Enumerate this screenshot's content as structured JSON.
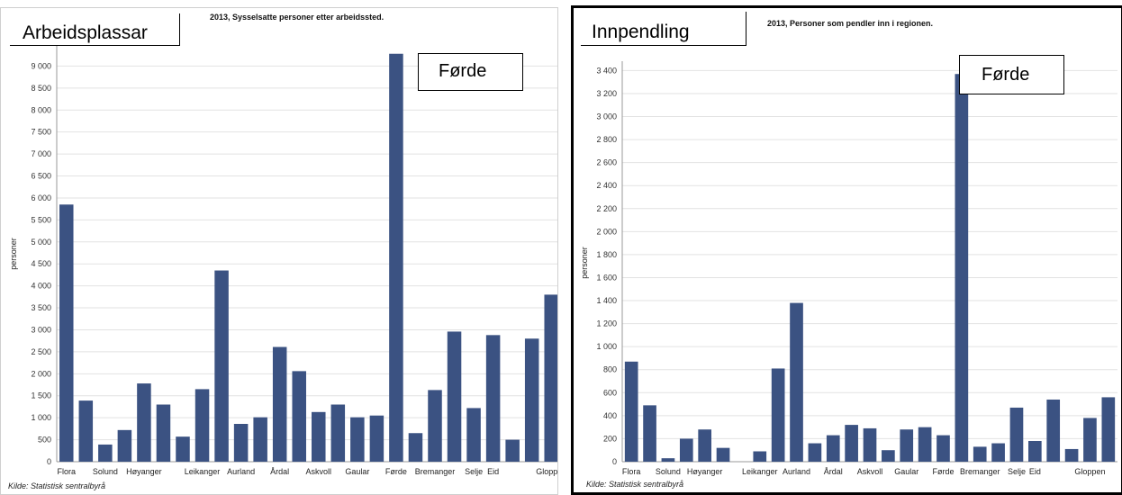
{
  "chart_data": [
    {
      "type": "bar",
      "panel_label": "Arbeidsplassar",
      "title": "2013, Sysselsatte personer etter arbeidssted.",
      "highlight_label": "Førde",
      "ylabel": "personer",
      "source": "Kilde: Statistisk sentralbyrå",
      "ylim": [
        0,
        9500
      ],
      "yticks": [
        "0",
        "500",
        "1 000",
        "1 500",
        "2 000",
        "2 500",
        "3 000",
        "3 500",
        "4 000",
        "4 500",
        "5 000",
        "5 500",
        "6 000",
        "6 500",
        "7 000",
        "7 500",
        "8 000",
        "8 500",
        "9 000"
      ],
      "tick_values": [
        0,
        500,
        1000,
        1500,
        2000,
        2500,
        3000,
        3500,
        4000,
        4500,
        5000,
        5500,
        6000,
        6500,
        7000,
        7500,
        8000,
        8500,
        9000
      ],
      "x_labels": [
        "Flora",
        "Solund",
        "Høyanger",
        "Leikanger",
        "Aurland",
        "Årdal",
        "Askvoll",
        "Gaular",
        "Førde",
        "Bremanger",
        "Selje",
        "Eid",
        "Gloppen"
      ],
      "x_label_positions": [
        0,
        2,
        4,
        7,
        9,
        11,
        13,
        15,
        17,
        19,
        21,
        22,
        25
      ],
      "values": [
        5850,
        1390,
        390,
        720,
        1780,
        1300,
        570,
        1650,
        4350,
        860,
        1010,
        2610,
        2060,
        1130,
        1300,
        1010,
        1050,
        9280,
        650,
        1630,
        2960,
        1220,
        2880,
        500,
        2800,
        3800
      ],
      "bar_color": "#3b5282",
      "grid": true
    },
    {
      "type": "bar",
      "panel_label": "Innpendling",
      "title": "2013, Personer som pendler inn i regionen.",
      "highlight_label": "Førde",
      "ylabel": "personer",
      "source": "Kilde: Statistisk sentralbyrå",
      "ylim": [
        0,
        3450
      ],
      "yticks": [
        "0",
        "200",
        "400",
        "600",
        "800",
        "1 000",
        "1 200",
        "1 400",
        "1 600",
        "1 800",
        "2 000",
        "2 200",
        "2 400",
        "2 600",
        "2 800",
        "3 000",
        "3 200",
        "3 400"
      ],
      "tick_values": [
        0,
        200,
        400,
        600,
        800,
        1000,
        1200,
        1400,
        1600,
        1800,
        2000,
        2200,
        2400,
        2600,
        2800,
        3000,
        3200,
        3400
      ],
      "x_labels": [
        "Flora",
        "Solund",
        "Høyanger",
        "Leikanger",
        "Aurland",
        "Årdal",
        "Askvoll",
        "Gaular",
        "Førde",
        "Bremanger",
        "Selje",
        "Eid",
        "Gloppen"
      ],
      "x_label_positions": [
        0,
        2,
        4,
        7,
        9,
        11,
        13,
        15,
        17,
        19,
        21,
        22,
        25
      ],
      "values": [
        870,
        490,
        30,
        200,
        280,
        120,
        0,
        90,
        810,
        1380,
        160,
        230,
        320,
        290,
        100,
        280,
        300,
        230,
        3370,
        130,
        160,
        470,
        180,
        540,
        110,
        380,
        560
      ],
      "bar_color": "#3b5282",
      "grid": true
    }
  ]
}
